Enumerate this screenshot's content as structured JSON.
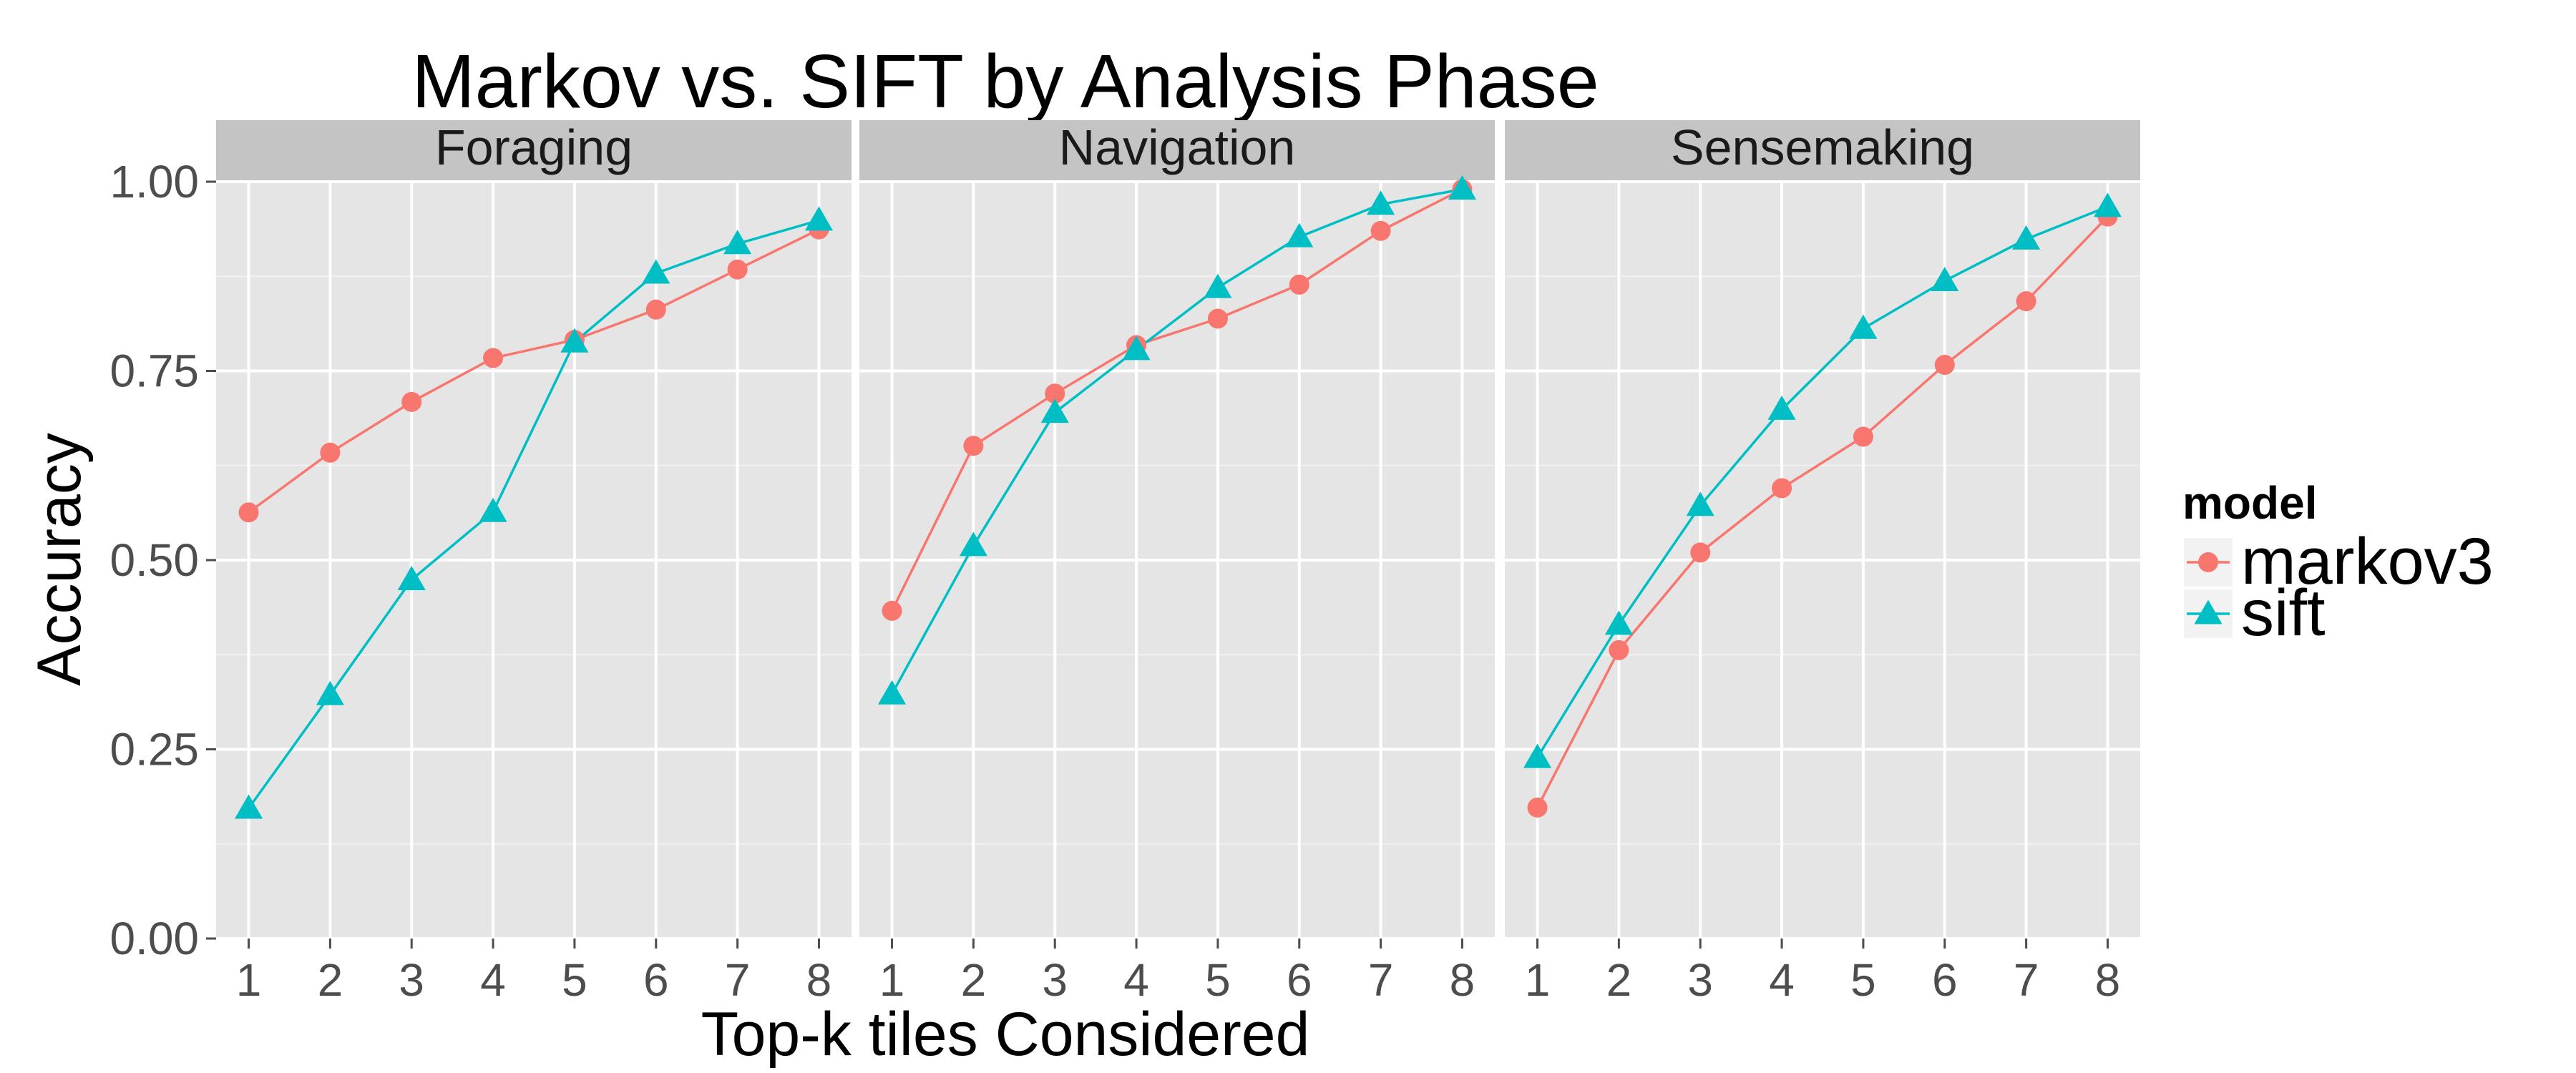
{
  "chart_data": {
    "type": "line",
    "title": "Markov vs. SIFT by Analysis Phase",
    "xlabel": "Top-k tiles Considered",
    "ylabel": "Accuracy",
    "x": [
      1,
      2,
      3,
      4,
      5,
      6,
      7,
      8
    ],
    "x_tick_labels": [
      "1",
      "2",
      "3",
      "4",
      "5",
      "6",
      "7",
      "8"
    ],
    "ylim": [
      0,
      1
    ],
    "y_ticks": [
      0,
      0.25,
      0.5,
      0.75,
      1
    ],
    "y_tick_labels": [
      "0.00",
      "0.25",
      "0.50",
      "0.75",
      "1.00"
    ],
    "grid": true,
    "legend": {
      "title": "model",
      "placement": "right",
      "entries": [
        {
          "name": "markov3",
          "color": "#F8766D",
          "shape": "circle"
        },
        {
          "name": "sift",
          "color": "#00BFC4",
          "shape": "triangle"
        }
      ]
    },
    "panels": [
      {
        "name": "Foraging",
        "series": [
          {
            "name": "markov3",
            "values": [
              0.563,
              0.642,
              0.709,
              0.767,
              0.791,
              0.831,
              0.884,
              0.937
            ]
          },
          {
            "name": "sift",
            "values": [
              0.172,
              0.322,
              0.474,
              0.564,
              0.788,
              0.879,
              0.918,
              0.949
            ]
          }
        ]
      },
      {
        "name": "Navigation",
        "series": [
          {
            "name": "markov3",
            "values": [
              0.433,
              0.651,
              0.72,
              0.784,
              0.819,
              0.864,
              0.935,
              0.99
            ]
          },
          {
            "name": "sift",
            "values": [
              0.323,
              0.519,
              0.695,
              0.778,
              0.86,
              0.927,
              0.97,
              0.99
            ]
          }
        ]
      },
      {
        "name": "Sensemaking",
        "series": [
          {
            "name": "markov3",
            "values": [
              0.173,
              0.381,
              0.51,
              0.595,
              0.663,
              0.758,
              0.842,
              0.954
            ]
          },
          {
            "name": "sift",
            "values": [
              0.239,
              0.415,
              0.572,
              0.699,
              0.806,
              0.869,
              0.924,
              0.967
            ]
          }
        ]
      }
    ]
  }
}
